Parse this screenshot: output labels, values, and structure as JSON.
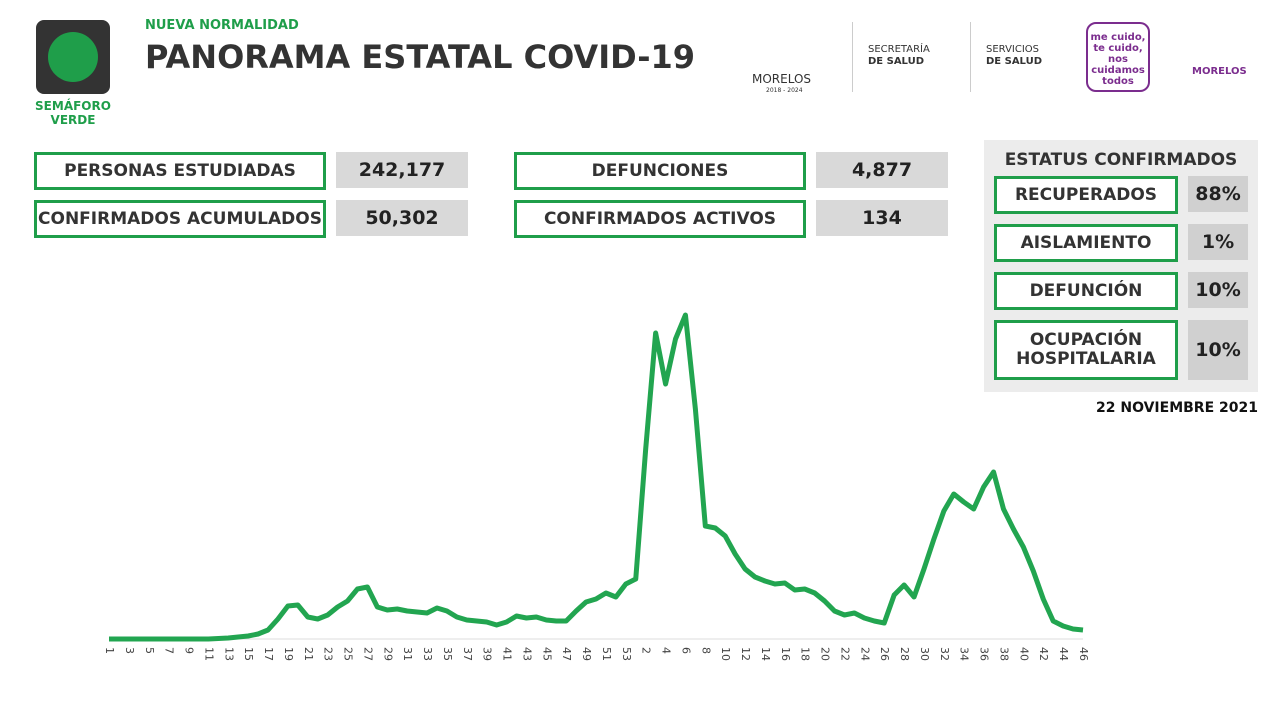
{
  "header": {
    "badge": "SEMÁFORO VERDE",
    "kicker": "NUEVA NORMALIDAD",
    "title": "PANORAMA ESTATAL COVID-19",
    "logos": [
      "MORELOS",
      "2018 - 2024",
      "SECRETARÍA",
      "DE SALUD",
      "SERVICIOS",
      "DE SALUD",
      "me cuido, te cuido, nos cuidamos todos",
      "MORELOS"
    ]
  },
  "stats": [
    {
      "label": "PERSONAS ESTUDIADAS",
      "value": "242,177"
    },
    {
      "label": "CONFIRMADOS ACUMULADOS",
      "value": "50,302"
    },
    {
      "label": "DEFUNCIONES",
      "value": "4,877"
    },
    {
      "label": "CONFIRMADOS ACTIVOS",
      "value": "134"
    }
  ],
  "status": {
    "title": "ESTATUS CONFIRMADOS",
    "rows": [
      {
        "label": "RECUPERADOS",
        "value": "88%"
      },
      {
        "label": "AISLAMIENTO",
        "value": "1%"
      },
      {
        "label": "DEFUNCIÓN",
        "value": "10%"
      },
      {
        "label": "OCUPACIÓN HOSPITALARIA",
        "value": "10%"
      }
    ]
  },
  "date": "22 NOVIEMBRE 2021",
  "chart_data": {
    "type": "line",
    "color": "#22a550",
    "ylim": [
      0,
      330
    ],
    "categories": [
      "1",
      null,
      "3",
      null,
      "5",
      null,
      "7",
      null,
      "9",
      null,
      "11",
      null,
      "13",
      null,
      "15",
      null,
      "17",
      null,
      "19",
      null,
      "21",
      null,
      "23",
      null,
      "25",
      null,
      "27",
      null,
      "29",
      null,
      "31",
      null,
      "33",
      null,
      "35",
      null,
      "37",
      null,
      "39",
      null,
      "41",
      null,
      "43",
      null,
      "45",
      null,
      "47",
      null,
      "49",
      null,
      "51",
      null,
      "53",
      null,
      "2",
      null,
      "4",
      null,
      "6",
      null,
      "8",
      null,
      "10",
      null,
      "12",
      null,
      "14",
      null,
      "16",
      null,
      "18",
      null,
      "20",
      null,
      "22",
      null,
      "24",
      null,
      "26",
      null,
      "28",
      null,
      "30",
      null,
      "32",
      null,
      "34",
      null,
      "36",
      null,
      "38",
      null,
      "40",
      null,
      "42",
      null,
      "44",
      null,
      "46"
    ],
    "values": [
      0,
      0,
      0,
      0,
      0,
      0,
      0,
      0,
      0,
      0,
      0,
      0.5,
      1,
      2,
      3,
      5,
      9,
      20,
      33,
      34,
      22,
      20,
      24,
      32,
      38,
      50,
      52,
      32,
      29,
      30,
      28,
      27,
      26,
      31,
      28,
      22,
      19,
      18,
      17,
      14,
      17,
      23,
      21,
      22,
      19,
      18,
      18,
      28,
      37,
      40,
      46,
      42,
      55,
      60,
      190,
      306,
      255,
      300,
      324,
      230,
      113,
      111,
      103,
      85,
      70,
      62,
      58,
      55,
      56,
      49,
      50,
      46,
      38,
      28,
      24,
      26,
      21,
      18,
      16,
      44,
      54,
      42,
      70,
      100,
      128,
      145,
      137,
      130,
      152,
      167,
      130,
      110,
      92,
      68,
      40,
      18,
      13,
      10,
      9
    ]
  }
}
